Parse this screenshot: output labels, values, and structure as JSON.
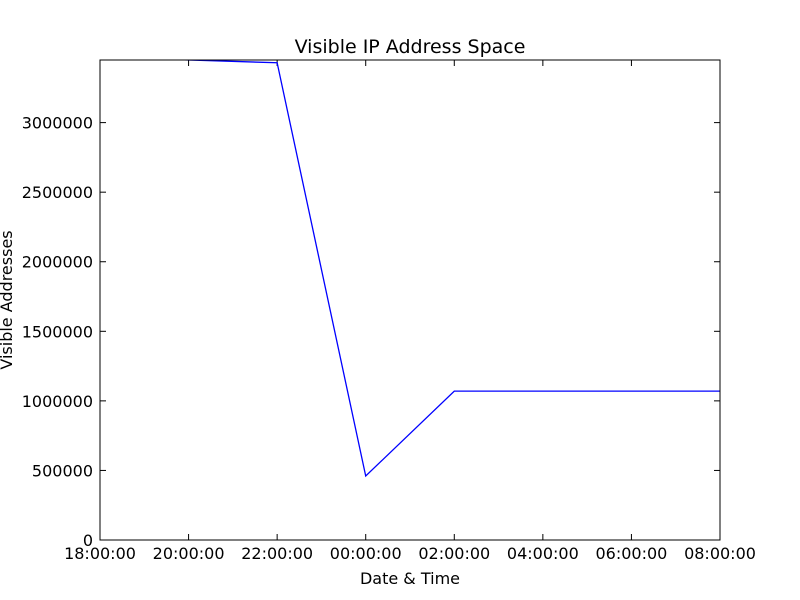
{
  "chart_data": {
    "type": "line",
    "title": "Visible IP Address Space",
    "xlabel": "Date & Time",
    "ylabel": "Visible Addresses",
    "x_ticks": [
      "18:00:00",
      "20:00:00",
      "22:00:00",
      "00:00:00",
      "02:00:00",
      "04:00:00",
      "06:00:00",
      "08:00:00"
    ],
    "y_ticks": [
      "0",
      "500000",
      "1000000",
      "1500000",
      "2000000",
      "2500000",
      "3000000"
    ],
    "ylim": [
      0,
      3450000
    ],
    "grid": false,
    "series": [
      {
        "color": "#0000ff",
        "x": [
          "18:00:00",
          "20:00:00",
          "22:00:00",
          "00:00:00",
          "02:00:00",
          "04:00:00",
          "06:00:00",
          "08:00:00"
        ],
        "values": [
          3470000,
          3450000,
          3430000,
          460000,
          1070000,
          1070000,
          1070000,
          1070000
        ]
      }
    ]
  }
}
